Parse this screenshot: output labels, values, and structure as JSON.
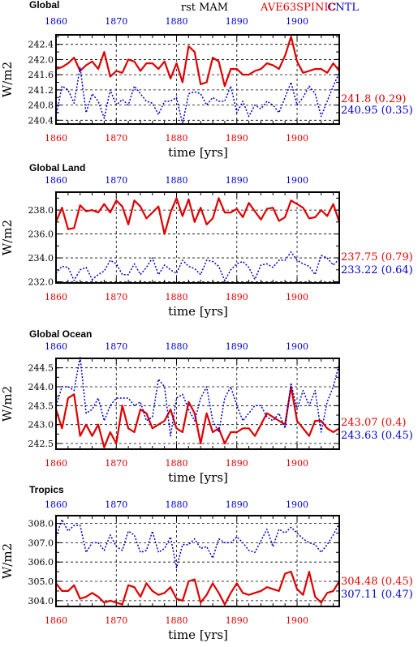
{
  "header": {
    "title": "rst  MAM",
    "case": "AVE63SPINIC",
    "control": "CNTL",
    "case_color": "#e00000",
    "control_color": "#0000cc"
  },
  "colors": {
    "case": "#e00000",
    "control": "#0000cc"
  },
  "chart_data": [
    {
      "type": "line",
      "title": "Global",
      "xlabel": "time [yrs]",
      "ylabel": "W/m2",
      "xlim": [
        1860,
        1907
      ],
      "ylim": [
        240.3,
        242.65
      ],
      "xticks": [
        1860,
        1870,
        1880,
        1890,
        1900
      ],
      "yticks": [
        240.4,
        240.8,
        241.2,
        241.6,
        242.0,
        242.4
      ],
      "yticklabels": [
        "240.4",
        "240.8",
        "241.2",
        "241.6",
        "242.0",
        "242.4"
      ],
      "grid": true,
      "x_start": 1860,
      "series": [
        {
          "name": "AVE63SPINIC",
          "color": "#e00000",
          "style": "solid",
          "values": [
            241.75,
            241.8,
            241.9,
            242.05,
            241.7,
            241.85,
            241.95,
            241.75,
            242.2,
            241.55,
            241.7,
            241.65,
            242.0,
            241.95,
            241.7,
            241.9,
            241.9,
            241.75,
            241.95,
            241.5,
            241.9,
            241.4,
            242.35,
            242.2,
            241.35,
            241.4,
            242.05,
            241.95,
            241.3,
            241.75,
            241.75,
            241.6,
            241.6,
            241.7,
            241.75,
            241.9,
            241.85,
            241.75,
            242.1,
            242.6,
            241.95,
            241.65,
            241.7,
            241.75,
            241.75,
            241.65,
            241.9,
            241.7
          ]
        },
        {
          "name": "CNTL",
          "color": "#0000cc",
          "style": "dash",
          "values": [
            240.5,
            241.3,
            241.2,
            240.85,
            241.8,
            240.6,
            241.1,
            240.9,
            240.45,
            241.2,
            240.8,
            240.95,
            240.8,
            241.3,
            241.1,
            240.9,
            240.85,
            240.55,
            240.9,
            240.9,
            241.0,
            240.3,
            241.1,
            241.15,
            241.1,
            240.8,
            241.0,
            240.9,
            240.9,
            241.3,
            240.6,
            240.9,
            240.5,
            240.8,
            240.7,
            240.9,
            240.8,
            240.6,
            241.0,
            241.4,
            240.8,
            241.0,
            241.3,
            241.1,
            240.5,
            240.9,
            241.3,
            241.65
          ]
        }
      ],
      "stats": [
        {
          "label": "241.8 (0.29)",
          "color": "#e00000"
        },
        {
          "label": "240.95 (0.35)",
          "color": "#0000cc"
        }
      ]
    },
    {
      "type": "line",
      "title": "Global Land",
      "xlabel": "time [yrs]",
      "ylabel": "W/m2",
      "xlim": [
        1860,
        1907
      ],
      "ylim": [
        231.9,
        239.5
      ],
      "xticks": [
        1860,
        1870,
        1880,
        1890,
        1900
      ],
      "yticks": [
        232.0,
        234.0,
        236.0,
        238.0
      ],
      "yticklabels": [
        "232.0",
        "234.0",
        "236.0",
        "238.0"
      ],
      "grid": true,
      "x_start": 1860,
      "series": [
        {
          "name": "AVE63SPINIC",
          "color": "#e00000",
          "style": "solid",
          "values": [
            237.0,
            238.2,
            236.4,
            236.5,
            238.4,
            237.9,
            238.0,
            237.8,
            238.5,
            237.8,
            238.8,
            238.3,
            236.8,
            238.8,
            238.3,
            237.3,
            237.8,
            238.3,
            236.0,
            237.8,
            239.0,
            237.5,
            238.9,
            237.0,
            238.2,
            236.8,
            237.3,
            239.0,
            237.8,
            237.8,
            238.1,
            237.4,
            238.6,
            237.9,
            237.2,
            238.1,
            238.2,
            237.1,
            237.4,
            238.8,
            238.5,
            238.2,
            237.3,
            237.4,
            238.0,
            237.5,
            238.5,
            237.0
          ]
        },
        {
          "name": "CNTL",
          "color": "#0000cc",
          "style": "dash",
          "values": [
            232.7,
            233.3,
            233.2,
            232.1,
            233.0,
            233.2,
            232.2,
            232.6,
            232.9,
            233.8,
            233.5,
            232.6,
            232.6,
            233.5,
            232.6,
            233.2,
            234.0,
            232.6,
            233.4,
            233.0,
            232.7,
            233.8,
            233.3,
            233.1,
            232.6,
            233.8,
            233.7,
            233.3,
            232.1,
            233.0,
            233.5,
            233.7,
            233.2,
            232.2,
            233.4,
            233.5,
            233.2,
            233.8,
            233.8,
            234.5,
            233.8,
            233.5,
            233.3,
            232.6,
            234.2,
            234.0,
            233.4,
            233.9
          ]
        }
      ],
      "stats": [
        {
          "label": "237.75 (0.79)",
          "color": "#e00000"
        },
        {
          "label": "233.22 (0.64)",
          "color": "#0000cc"
        }
      ]
    },
    {
      "type": "line",
      "title": "Global Ocean",
      "xlabel": "time [yrs]",
      "ylabel": "W/m2",
      "xlim": [
        1860,
        1907
      ],
      "ylim": [
        242.35,
        244.75
      ],
      "xticks": [
        1860,
        1870,
        1880,
        1890,
        1900
      ],
      "yticks": [
        242.5,
        243.0,
        243.5,
        244.0,
        244.5
      ],
      "yticklabels": [
        "242.5",
        "243.0",
        "243.5",
        "244.0",
        "244.5"
      ],
      "grid": true,
      "x_start": 1860,
      "series": [
        {
          "name": "AVE63SPINIC",
          "color": "#e00000",
          "style": "solid",
          "values": [
            243.4,
            242.9,
            243.7,
            243.8,
            242.7,
            243.0,
            242.7,
            243.0,
            242.4,
            242.8,
            242.5,
            243.5,
            242.9,
            242.8,
            243.4,
            243.3,
            242.9,
            243.0,
            243.1,
            243.4,
            242.9,
            242.8,
            243.6,
            243.3,
            242.5,
            243.3,
            242.8,
            242.9,
            242.5,
            242.8,
            242.8,
            242.9,
            242.9,
            242.7,
            243.0,
            243.3,
            243.2,
            243.1,
            243.0,
            244.0,
            243.1,
            242.9,
            242.7,
            243.1,
            243.1,
            242.9,
            242.8,
            242.9
          ]
        },
        {
          "name": "CNTL",
          "color": "#0000cc",
          "style": "dash",
          "values": [
            243.5,
            244.0,
            244.0,
            243.9,
            244.8,
            243.3,
            243.4,
            243.7,
            243.1,
            243.5,
            243.7,
            243.7,
            243.7,
            243.5,
            243.6,
            243.1,
            243.2,
            244.2,
            244.0,
            242.7,
            243.7,
            243.8,
            243.4,
            243.1,
            243.7,
            244.0,
            243.1,
            242.8,
            243.7,
            244.0,
            243.5,
            243.1,
            243.3,
            243.5,
            243.5,
            243.2,
            243.1,
            243.3,
            242.9,
            244.1,
            243.4,
            243.9,
            243.5,
            243.9,
            242.8,
            243.6,
            244.0,
            244.6
          ]
        }
      ],
      "stats": [
        {
          "label": "243.07 (0.4)",
          "color": "#e00000"
        },
        {
          "label": "243.63 (0.45)",
          "color": "#0000cc"
        }
      ]
    },
    {
      "type": "line",
      "title": "Tropics",
      "xlabel": "time [yrs]",
      "ylabel": "W/m2",
      "xlim": [
        1860,
        1907
      ],
      "ylim": [
        303.7,
        308.4
      ],
      "xticks": [
        1860,
        1870,
        1880,
        1890,
        1900
      ],
      "yticks": [
        304.0,
        305.0,
        306.0,
        307.0,
        308.0
      ],
      "yticklabels": [
        "304.0",
        "305.0",
        "306.0",
        "307.0",
        "308.0"
      ],
      "grid": true,
      "x_start": 1860,
      "series": [
        {
          "name": "AVE63SPINIC",
          "color": "#e00000",
          "style": "solid",
          "values": [
            304.9,
            304.5,
            304.5,
            304.8,
            304.1,
            304.2,
            304.4,
            304.2,
            303.9,
            304.0,
            303.9,
            303.8,
            304.8,
            304.7,
            304.2,
            304.9,
            304.5,
            304.3,
            304.4,
            304.7,
            304.1,
            304.0,
            305.0,
            305.1,
            303.9,
            304.3,
            304.9,
            304.4,
            303.8,
            304.4,
            304.9,
            304.4,
            304.3,
            304.4,
            304.5,
            304.7,
            304.6,
            304.5,
            305.4,
            305.5,
            304.6,
            304.3,
            305.5,
            304.2,
            303.9,
            304.4,
            304.5,
            305.0
          ]
        },
        {
          "name": "CNTL",
          "color": "#0000cc",
          "style": "dash",
          "values": [
            307.3,
            308.2,
            307.6,
            307.9,
            307.9,
            306.5,
            307.0,
            307.0,
            306.6,
            307.4,
            306.8,
            306.6,
            307.6,
            307.4,
            306.5,
            306.6,
            307.6,
            306.5,
            306.7,
            307.3,
            305.7,
            306.9,
            306.9,
            307.2,
            306.7,
            306.8,
            306.2,
            307.2,
            307.0,
            307.0,
            307.3,
            307.0,
            306.6,
            306.5,
            307.1,
            307.7,
            306.8,
            307.7,
            307.5,
            307.8,
            307.5,
            307.2,
            307.0,
            306.9,
            306.5,
            306.9,
            307.4,
            308.0
          ]
        }
      ],
      "stats": [
        {
          "label": "304.48 (0.45)",
          "color": "#e00000"
        },
        {
          "label": "307.11 (0.47)",
          "color": "#0000cc"
        }
      ]
    }
  ]
}
